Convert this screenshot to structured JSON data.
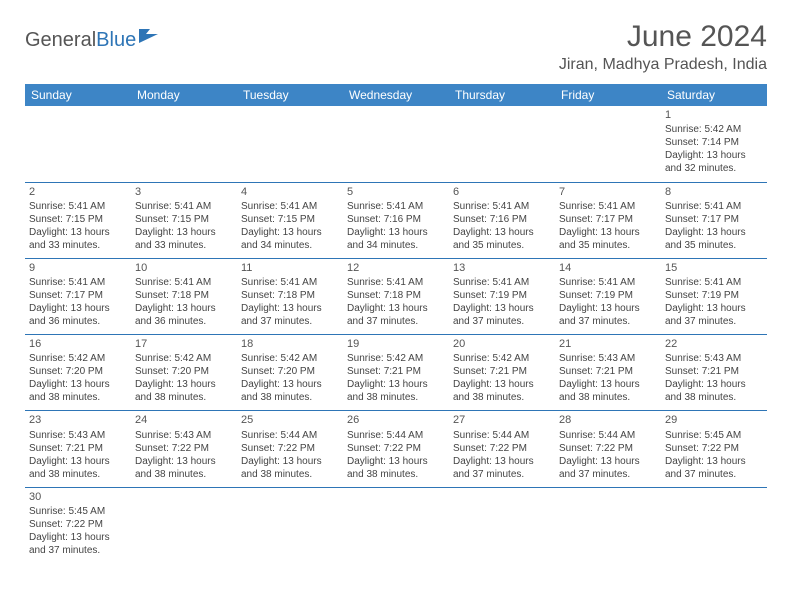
{
  "logo": {
    "general": "General",
    "blue": "Blue"
  },
  "header": {
    "title": "June 2024",
    "location": "Jiran, Madhya Pradesh, India"
  },
  "colors": {
    "header_bg": "#3d85c6",
    "header_text": "#ffffff",
    "row_border": "#2e75b6",
    "text": "#444444",
    "logo_blue": "#2e75b6"
  },
  "day_headers": [
    "Sunday",
    "Monday",
    "Tuesday",
    "Wednesday",
    "Thursday",
    "Friday",
    "Saturday"
  ],
  "weeks": [
    [
      null,
      null,
      null,
      null,
      null,
      null,
      {
        "n": "1",
        "sr": "5:42 AM",
        "ss": "7:14 PM",
        "dl": "13 hours and 32 minutes."
      }
    ],
    [
      {
        "n": "2",
        "sr": "5:41 AM",
        "ss": "7:15 PM",
        "dl": "13 hours and 33 minutes."
      },
      {
        "n": "3",
        "sr": "5:41 AM",
        "ss": "7:15 PM",
        "dl": "13 hours and 33 minutes."
      },
      {
        "n": "4",
        "sr": "5:41 AM",
        "ss": "7:15 PM",
        "dl": "13 hours and 34 minutes."
      },
      {
        "n": "5",
        "sr": "5:41 AM",
        "ss": "7:16 PM",
        "dl": "13 hours and 34 minutes."
      },
      {
        "n": "6",
        "sr": "5:41 AM",
        "ss": "7:16 PM",
        "dl": "13 hours and 35 minutes."
      },
      {
        "n": "7",
        "sr": "5:41 AM",
        "ss": "7:17 PM",
        "dl": "13 hours and 35 minutes."
      },
      {
        "n": "8",
        "sr": "5:41 AM",
        "ss": "7:17 PM",
        "dl": "13 hours and 35 minutes."
      }
    ],
    [
      {
        "n": "9",
        "sr": "5:41 AM",
        "ss": "7:17 PM",
        "dl": "13 hours and 36 minutes."
      },
      {
        "n": "10",
        "sr": "5:41 AM",
        "ss": "7:18 PM",
        "dl": "13 hours and 36 minutes."
      },
      {
        "n": "11",
        "sr": "5:41 AM",
        "ss": "7:18 PM",
        "dl": "13 hours and 37 minutes."
      },
      {
        "n": "12",
        "sr": "5:41 AM",
        "ss": "7:18 PM",
        "dl": "13 hours and 37 minutes."
      },
      {
        "n": "13",
        "sr": "5:41 AM",
        "ss": "7:19 PM",
        "dl": "13 hours and 37 minutes."
      },
      {
        "n": "14",
        "sr": "5:41 AM",
        "ss": "7:19 PM",
        "dl": "13 hours and 37 minutes."
      },
      {
        "n": "15",
        "sr": "5:41 AM",
        "ss": "7:19 PM",
        "dl": "13 hours and 37 minutes."
      }
    ],
    [
      {
        "n": "16",
        "sr": "5:42 AM",
        "ss": "7:20 PM",
        "dl": "13 hours and 38 minutes."
      },
      {
        "n": "17",
        "sr": "5:42 AM",
        "ss": "7:20 PM",
        "dl": "13 hours and 38 minutes."
      },
      {
        "n": "18",
        "sr": "5:42 AM",
        "ss": "7:20 PM",
        "dl": "13 hours and 38 minutes."
      },
      {
        "n": "19",
        "sr": "5:42 AM",
        "ss": "7:21 PM",
        "dl": "13 hours and 38 minutes."
      },
      {
        "n": "20",
        "sr": "5:42 AM",
        "ss": "7:21 PM",
        "dl": "13 hours and 38 minutes."
      },
      {
        "n": "21",
        "sr": "5:43 AM",
        "ss": "7:21 PM",
        "dl": "13 hours and 38 minutes."
      },
      {
        "n": "22",
        "sr": "5:43 AM",
        "ss": "7:21 PM",
        "dl": "13 hours and 38 minutes."
      }
    ],
    [
      {
        "n": "23",
        "sr": "5:43 AM",
        "ss": "7:21 PM",
        "dl": "13 hours and 38 minutes."
      },
      {
        "n": "24",
        "sr": "5:43 AM",
        "ss": "7:22 PM",
        "dl": "13 hours and 38 minutes."
      },
      {
        "n": "25",
        "sr": "5:44 AM",
        "ss": "7:22 PM",
        "dl": "13 hours and 38 minutes."
      },
      {
        "n": "26",
        "sr": "5:44 AM",
        "ss": "7:22 PM",
        "dl": "13 hours and 38 minutes."
      },
      {
        "n": "27",
        "sr": "5:44 AM",
        "ss": "7:22 PM",
        "dl": "13 hours and 37 minutes."
      },
      {
        "n": "28",
        "sr": "5:44 AM",
        "ss": "7:22 PM",
        "dl": "13 hours and 37 minutes."
      },
      {
        "n": "29",
        "sr": "5:45 AM",
        "ss": "7:22 PM",
        "dl": "13 hours and 37 minutes."
      }
    ],
    [
      {
        "n": "30",
        "sr": "5:45 AM",
        "ss": "7:22 PM",
        "dl": "13 hours and 37 minutes."
      },
      null,
      null,
      null,
      null,
      null,
      null
    ]
  ],
  "labels": {
    "sunrise": "Sunrise: ",
    "sunset": "Sunset: ",
    "daylight": "Daylight: "
  }
}
